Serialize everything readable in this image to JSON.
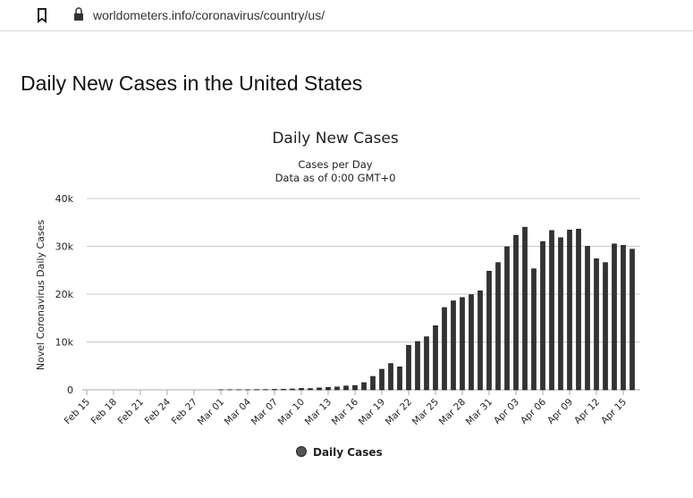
{
  "page": {
    "url": "worldometers.info/coronavirus/country/us/",
    "heading": "Daily New Cases in the United States"
  },
  "chart_data": {
    "type": "bar",
    "title": "Daily New Cases",
    "subtitle": [
      "Cases per Day",
      "Data as of 0:00 GMT+0"
    ],
    "y_label": "Novel Coronavirus Daily Cases",
    "categories": [
      "Feb 15",
      null,
      null,
      "Feb 18",
      null,
      null,
      "Feb 21",
      null,
      null,
      "Feb 24",
      null,
      null,
      "Feb 27",
      null,
      null,
      "Mar 01",
      null,
      null,
      "Mar 04",
      null,
      null,
      "Mar 07",
      null,
      null,
      "Mar 10",
      null,
      null,
      "Mar 13",
      null,
      null,
      "Mar 16",
      null,
      null,
      "Mar 19",
      null,
      null,
      "Mar 22",
      null,
      null,
      "Mar 25",
      null,
      null,
      "Mar 28",
      null,
      null,
      "Mar 31",
      null,
      null,
      "Apr 03",
      null,
      null,
      "Apr 06",
      null,
      null,
      "Apr 09",
      null,
      null,
      "Apr 12",
      null,
      null,
      "Apr 15",
      null
    ],
    "series": [
      {
        "name": "Daily Cases",
        "color": "#333333",
        "values": [
          0,
          0,
          0,
          0,
          0,
          0,
          0,
          0,
          0,
          0,
          0,
          0,
          0,
          0,
          0,
          20,
          25,
          20,
          30,
          60,
          60,
          100,
          120,
          180,
          290,
          270,
          400,
          500,
          600,
          800,
          900,
          1500,
          2800,
          4300,
          5500,
          4800,
          9300,
          10100,
          11100,
          13400,
          17200,
          18600,
          19300,
          19900,
          20700,
          24800,
          26600,
          29900,
          32300,
          34000,
          25300,
          31000,
          33300,
          31800,
          33400,
          33600,
          30000,
          27400,
          26600,
          30500,
          30200,
          29400
        ]
      }
    ],
    "ylim": [
      0,
      40000
    ],
    "yticks": [
      0,
      {
        "value": 10000,
        "label": "10k"
      },
      {
        "value": 20000,
        "label": "20k"
      },
      {
        "value": 30000,
        "label": "30k"
      },
      {
        "value": 40000,
        "label": "40k"
      }
    ],
    "grid": true,
    "legend": "bottom"
  }
}
